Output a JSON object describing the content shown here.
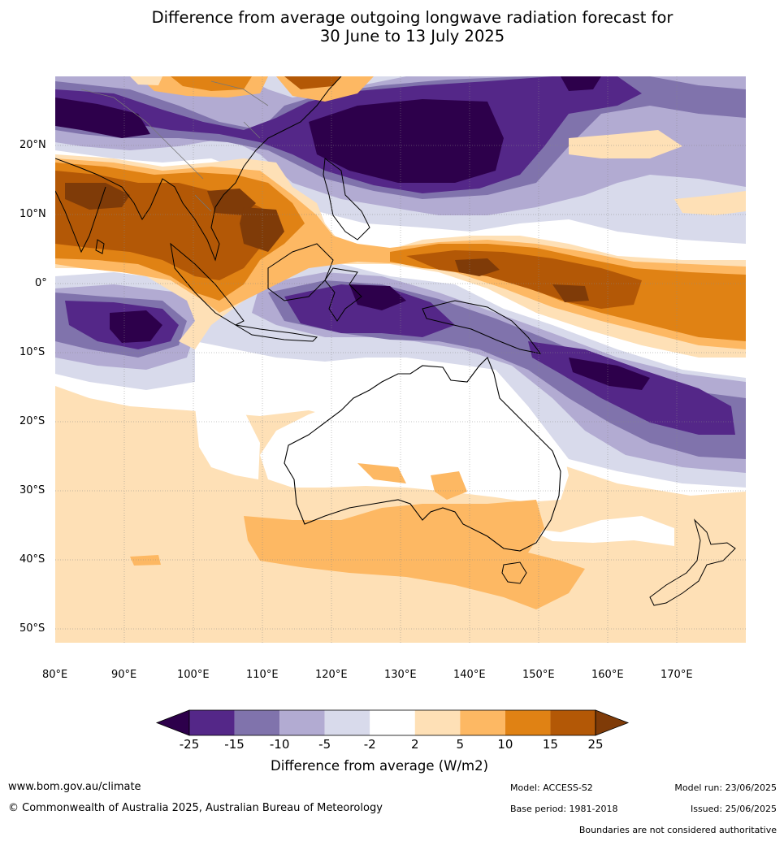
{
  "title": {
    "line1": "Difference from average outgoing longwave radiation forecast for",
    "line2": "30 June to 13 July 2025"
  },
  "map": {
    "lat_labels": [
      "20°N",
      "10°N",
      "0°",
      "10°S",
      "20°S",
      "30°S",
      "40°S",
      "50°S"
    ],
    "lon_labels": [
      "80°E",
      "90°E",
      "100°E",
      "110°E",
      "120°E",
      "130°E",
      "140°E",
      "150°E",
      "160°E",
      "170°E"
    ],
    "lat_range": [
      -55,
      30
    ],
    "lon_range": [
      80,
      180
    ]
  },
  "colorbar": {
    "ticks": [
      "-25",
      "-15",
      "-10",
      "-5",
      "-2",
      "2",
      "5",
      "10",
      "15",
      "25"
    ],
    "colors": [
      "#2d004b",
      "#542788",
      "#8073ac",
      "#b2abd2",
      "#d8daeb",
      "#ffffff",
      "#fee0b6",
      "#fdb863",
      "#e08214",
      "#b35806",
      "#7f3b08"
    ],
    "label": "Difference from average (W/m2)"
  },
  "footer": {
    "website": "www.bom.gov.au/climate",
    "copyright": "© Commonwealth of Australia 2025, Australian Bureau of Meteorology",
    "model": "Model: ACCESS-S2",
    "base_period": "Base period: 1981-2018",
    "model_run": "Model run: 23/06/2025",
    "issued": "Issued: 25/06/2025",
    "disclaimer": "Boundaries are not considered authoritative"
  }
}
